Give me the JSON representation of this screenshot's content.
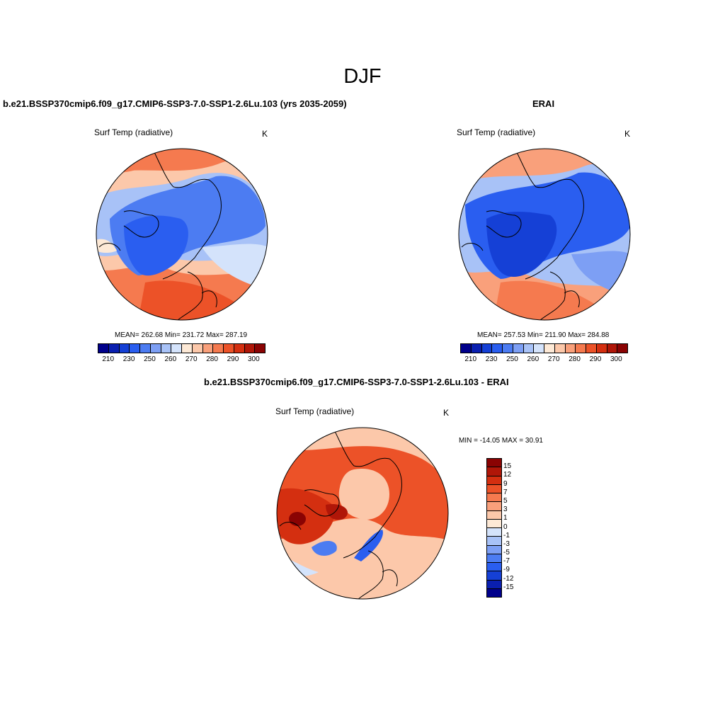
{
  "figure": {
    "title": "DJF"
  },
  "panels": [
    {
      "title": "b.e21.BSSP370cmip6.f09_g17.CMIP6-SSP3-7.0-SSP1-2.6Lu.103 (yrs 2035-2059)",
      "variable": "Surf Temp (radiative)",
      "units": "K",
      "stats": "MEAN= 262.68  Min= 231.72  Max= 287.19"
    },
    {
      "title": "ERAI",
      "variable": "Surf Temp (radiative)",
      "units": "K",
      "stats": "MEAN= 257.53  Min= 211.90  Max= 284.88"
    },
    {
      "title": "b.e21.BSSP370cmip6.f09_g17.CMIP6-SSP3-7.0-SSP1-2.6Lu.103 - ERAI",
      "variable": "Surf Temp (radiative)",
      "units": "K",
      "stats": "MIN = -14.05 MAX =  30.91"
    }
  ],
  "abs_colorbar": {
    "colors": [
      "#00008b",
      "#0a1fb0",
      "#1540d6",
      "#2a5ef0",
      "#4c7cf2",
      "#7d9ff4",
      "#a8c2f7",
      "#d4e3fb",
      "#fde9d6",
      "#fcc8aa",
      "#f9a07b",
      "#f57a4f",
      "#ec5228",
      "#d42f10",
      "#b01608",
      "#8a0303"
    ],
    "ticks": [
      "210",
      "230",
      "250",
      "260",
      "270",
      "280",
      "290",
      "300"
    ]
  },
  "diff_colorbar": {
    "colors": [
      "#8a0303",
      "#b01608",
      "#d42f10",
      "#ec5228",
      "#f57a4f",
      "#f9a07b",
      "#fcc8aa",
      "#fde9d6",
      "#d4e3fb",
      "#a8c2f7",
      "#7d9ff4",
      "#4c7cf2",
      "#2a5ef0",
      "#1540d6",
      "#0a1fb0",
      "#00008b"
    ],
    "ticks": [
      "15",
      "12",
      "9",
      "7",
      "5",
      "3",
      "1",
      "0",
      "-1",
      "-3",
      "-5",
      "-7",
      "-9",
      "-12",
      "-15"
    ]
  }
}
